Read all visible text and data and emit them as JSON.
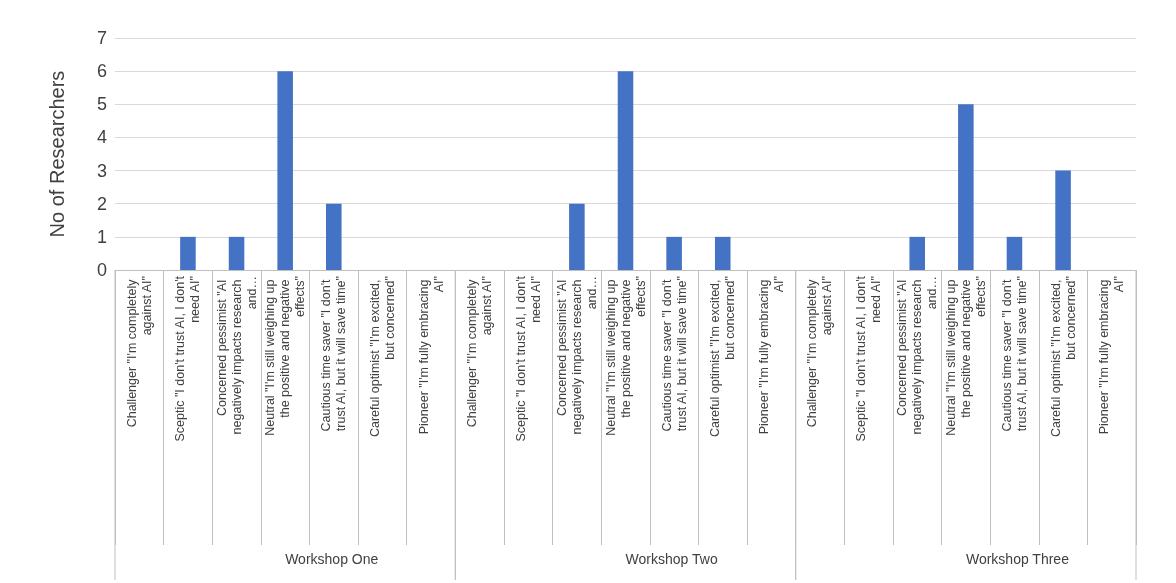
{
  "chart_data": {
    "type": "bar",
    "ylabel": "No of Researchers",
    "categories": [
      "Challenger \"I'm completely against AI\"",
      "Sceptic \"I don't trust AI, I don't need AI\"",
      "Concerned pessimist \"AI negatively impacts research and…",
      "Neutral \"I'm still weighing up the positive and negative effects\"",
      "Cautious time saver \"I don't trust AI, but it will save time\"",
      "Careful optimist \"I'm excited, but concerned\"",
      "Pioneer \"I'm fully embracing AI\"",
      "Challenger \"I'm completely against AI\"",
      "Sceptic \"I don't trust AI, I don't need AI\"",
      "Concerned pessimist \"AI negatively impacts research and…",
      "Neutral \"I'm still weighing up the positive and negative effects\"",
      "Cautious time saver \"I don't trust AI, but it will save time\"",
      "Careful optimist \"I'm excited, but concerned\"",
      "Pioneer \"I'm fully embracing AI\"",
      "Challenger \"I'm completely against AI\"",
      "Sceptic \"I don't trust AI, I don't need AI\"",
      "Concerned pessimist \"AI negatively impacts research and…",
      "Neutral \"I'm still weighing up the positive and negative effects\"",
      "Cautious time saver \"I don't trust AI, but it will save time\"",
      "Careful optimist \"I'm excited, but concerned\"",
      "Pioneer \"I'm fully embracing AI\""
    ],
    "values": [
      0,
      1,
      1,
      6,
      2,
      0,
      0,
      0,
      0,
      2,
      6,
      1,
      1,
      0,
      0,
      0,
      1,
      5,
      1,
      3,
      0
    ],
    "color": "#4472c4",
    "ylim": [
      0,
      7
    ],
    "yticks": [
      0,
      1,
      2,
      3,
      4,
      5,
      6,
      7
    ],
    "grid": "y",
    "annotations": [
      "Workshop One",
      "Workshop Two",
      "Workshop Three"
    ]
  }
}
